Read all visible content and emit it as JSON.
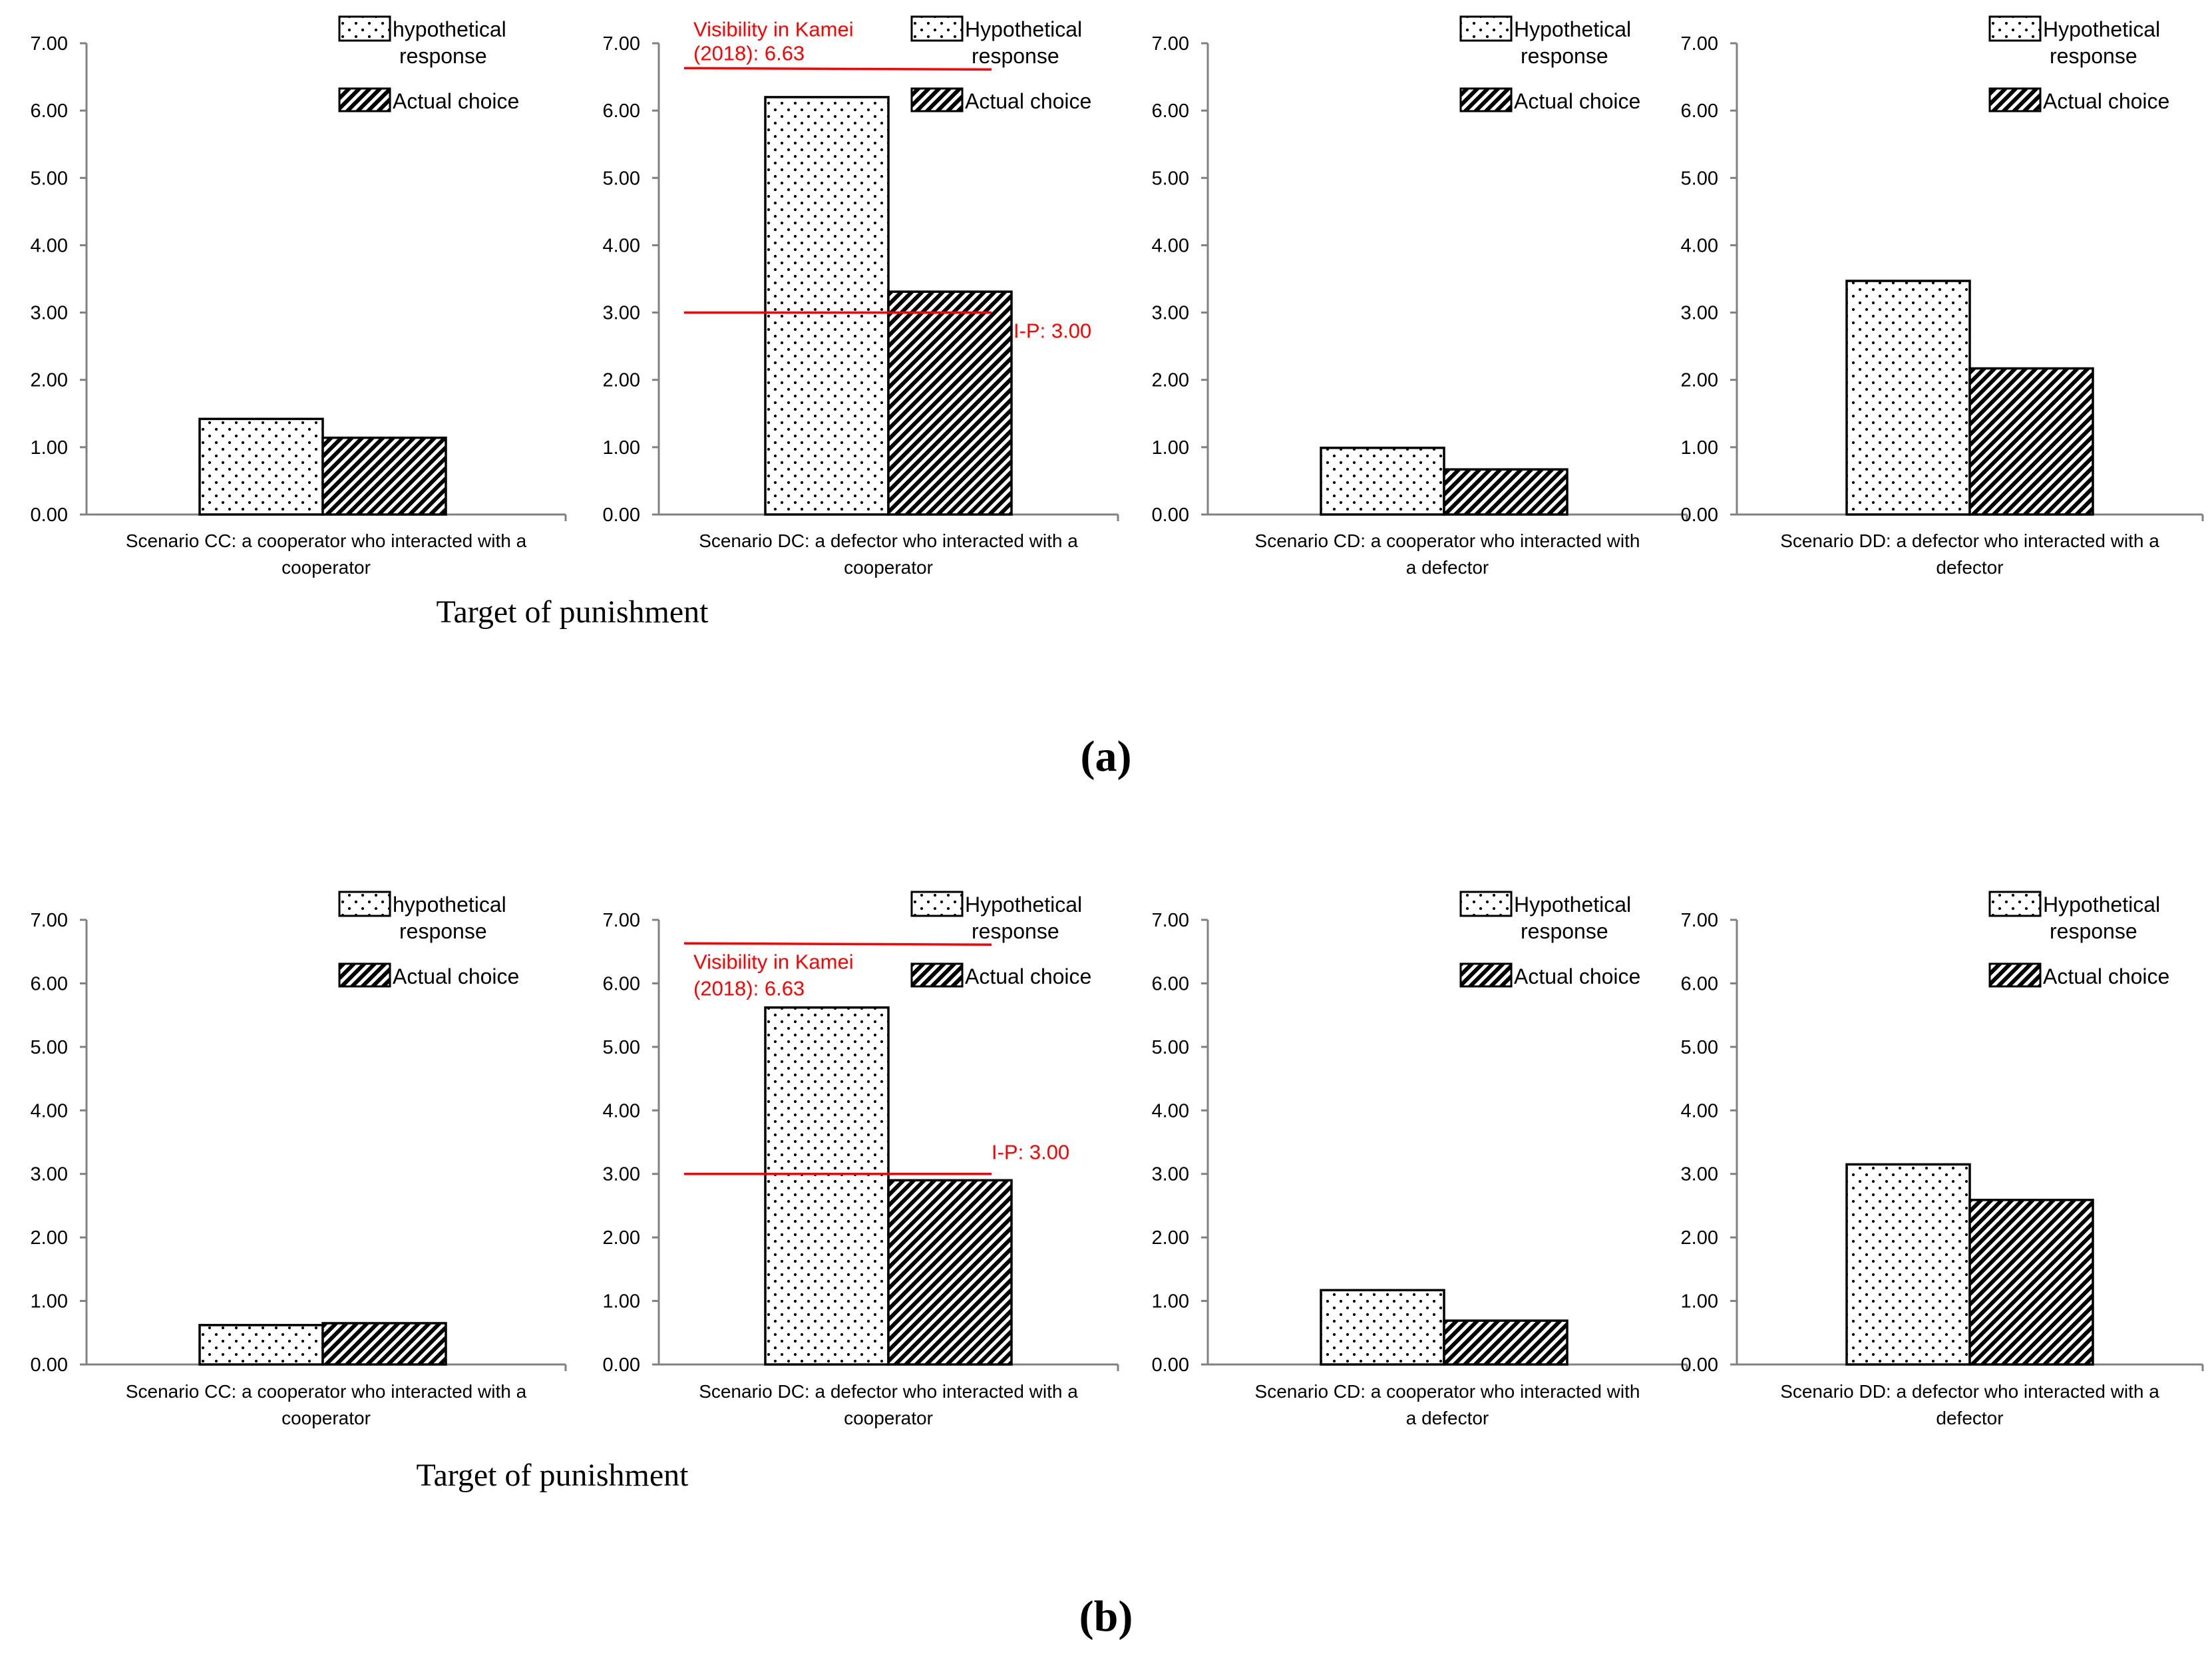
{
  "figure": {
    "x_axis_title": "Target of punishment",
    "panel_labels": [
      "(a)",
      "(b)"
    ]
  },
  "legend": {
    "hypothetical_lower": "hypothetical",
    "hypothetical_upper": "Hypothetical",
    "response": "response",
    "actual": "Actual choice"
  },
  "annotations": {
    "kamei_line1": "Visibility in Kamei",
    "kamei_line2": "(2018): 6.63",
    "ip_label": "I-P: 3.00"
  },
  "colors": {
    "reference_line": "#ff0000",
    "axis": "#7f7f7f",
    "text": "#000000"
  },
  "chart_data": [
    {
      "type": "bar",
      "panel": "a",
      "category": [
        "Scenario CC: a cooperator who interacted with a",
        "cooperator"
      ],
      "legend_first": "hypothetical",
      "series": [
        {
          "name": "Hypothetical response",
          "values": [
            1.42
          ]
        },
        {
          "name": "Actual choice",
          "values": [
            1.14
          ]
        }
      ],
      "ylim": [
        0,
        7
      ],
      "yticks": [
        "0.00",
        "1.00",
        "2.00",
        "3.00",
        "4.00",
        "5.00",
        "6.00",
        "7.00"
      ]
    },
    {
      "type": "bar",
      "panel": "a",
      "category": [
        "Scenario DC: a defector who interacted with a",
        "cooperator"
      ],
      "legend_first": "Hypothetical",
      "series": [
        {
          "name": "Hypothetical response",
          "values": [
            6.2
          ]
        },
        {
          "name": "Actual choice",
          "values": [
            3.31
          ]
        }
      ],
      "reference_lines": [
        {
          "value": 6.63,
          "label": "Visibility in Kamei (2018): 6.63"
        },
        {
          "value": 3.0,
          "label": "I-P: 3.00"
        }
      ],
      "ylim": [
        0,
        7
      ],
      "yticks": [
        "0.00",
        "1.00",
        "2.00",
        "3.00",
        "4.00",
        "5.00",
        "6.00",
        "7.00"
      ]
    },
    {
      "type": "bar",
      "panel": "a",
      "category": [
        "Scenario CD: a cooperator who interacted with",
        "a defector"
      ],
      "legend_first": "Hypothetical",
      "series": [
        {
          "name": "Hypothetical response",
          "values": [
            0.99
          ]
        },
        {
          "name": "Actual choice",
          "values": [
            0.67
          ]
        }
      ],
      "ylim": [
        0,
        7
      ],
      "yticks": [
        "0.00",
        "1.00",
        "2.00",
        "3.00",
        "4.00",
        "5.00",
        "6.00",
        "7.00"
      ]
    },
    {
      "type": "bar",
      "panel": "a",
      "category": [
        "Scenario DD: a defector who interacted with a",
        "defector"
      ],
      "legend_first": "Hypothetical",
      "series": [
        {
          "name": "Hypothetical response",
          "values": [
            3.47
          ]
        },
        {
          "name": "Actual choice",
          "values": [
            2.17
          ]
        }
      ],
      "ylim": [
        0,
        7
      ],
      "yticks": [
        "0.00",
        "1.00",
        "2.00",
        "3.00",
        "4.00",
        "5.00",
        "6.00",
        "7.00"
      ]
    },
    {
      "type": "bar",
      "panel": "b",
      "category": [
        "Scenario CC: a cooperator who interacted with a",
        "cooperator"
      ],
      "legend_first": "hypothetical",
      "series": [
        {
          "name": "Hypothetical response",
          "values": [
            0.62
          ]
        },
        {
          "name": "Actual choice",
          "values": [
            0.65
          ]
        }
      ],
      "ylim": [
        0,
        7
      ],
      "yticks": [
        "0.00",
        "1.00",
        "2.00",
        "3.00",
        "4.00",
        "5.00",
        "6.00",
        "7.00"
      ]
    },
    {
      "type": "bar",
      "panel": "b",
      "category": [
        "Scenario DC: a defector who interacted with a",
        "cooperator"
      ],
      "legend_first": "Hypothetical",
      "series": [
        {
          "name": "Hypothetical response",
          "values": [
            5.62
          ]
        },
        {
          "name": "Actual choice",
          "values": [
            2.9
          ]
        }
      ],
      "reference_lines": [
        {
          "value": 6.63,
          "label": "Visibility in Kamei (2018): 6.63"
        },
        {
          "value": 3.0,
          "label": "I-P: 3.00"
        }
      ],
      "ylim": [
        0,
        7
      ],
      "yticks": [
        "0.00",
        "1.00",
        "2.00",
        "3.00",
        "4.00",
        "5.00",
        "6.00",
        "7.00"
      ]
    },
    {
      "type": "bar",
      "panel": "b",
      "category": [
        "Scenario CD: a cooperator who interacted with",
        "a defector"
      ],
      "legend_first": "Hypothetical",
      "series": [
        {
          "name": "Hypothetical response",
          "values": [
            1.17
          ]
        },
        {
          "name": "Actual choice",
          "values": [
            0.69
          ]
        }
      ],
      "ylim": [
        0,
        7
      ],
      "yticks": [
        "0.00",
        "1.00",
        "2.00",
        "3.00",
        "4.00",
        "5.00",
        "6.00",
        "7.00"
      ]
    },
    {
      "type": "bar",
      "panel": "b",
      "category": [
        "Scenario DD: a defector who interacted with a",
        "defector"
      ],
      "legend_first": "Hypothetical",
      "series": [
        {
          "name": "Hypothetical response",
          "values": [
            3.15
          ]
        },
        {
          "name": "Actual choice",
          "values": [
            2.59
          ]
        }
      ],
      "ylim": [
        0,
        7
      ],
      "yticks": [
        "0.00",
        "1.00",
        "2.00",
        "3.00",
        "4.00",
        "5.00",
        "6.00",
        "7.00"
      ]
    }
  ]
}
